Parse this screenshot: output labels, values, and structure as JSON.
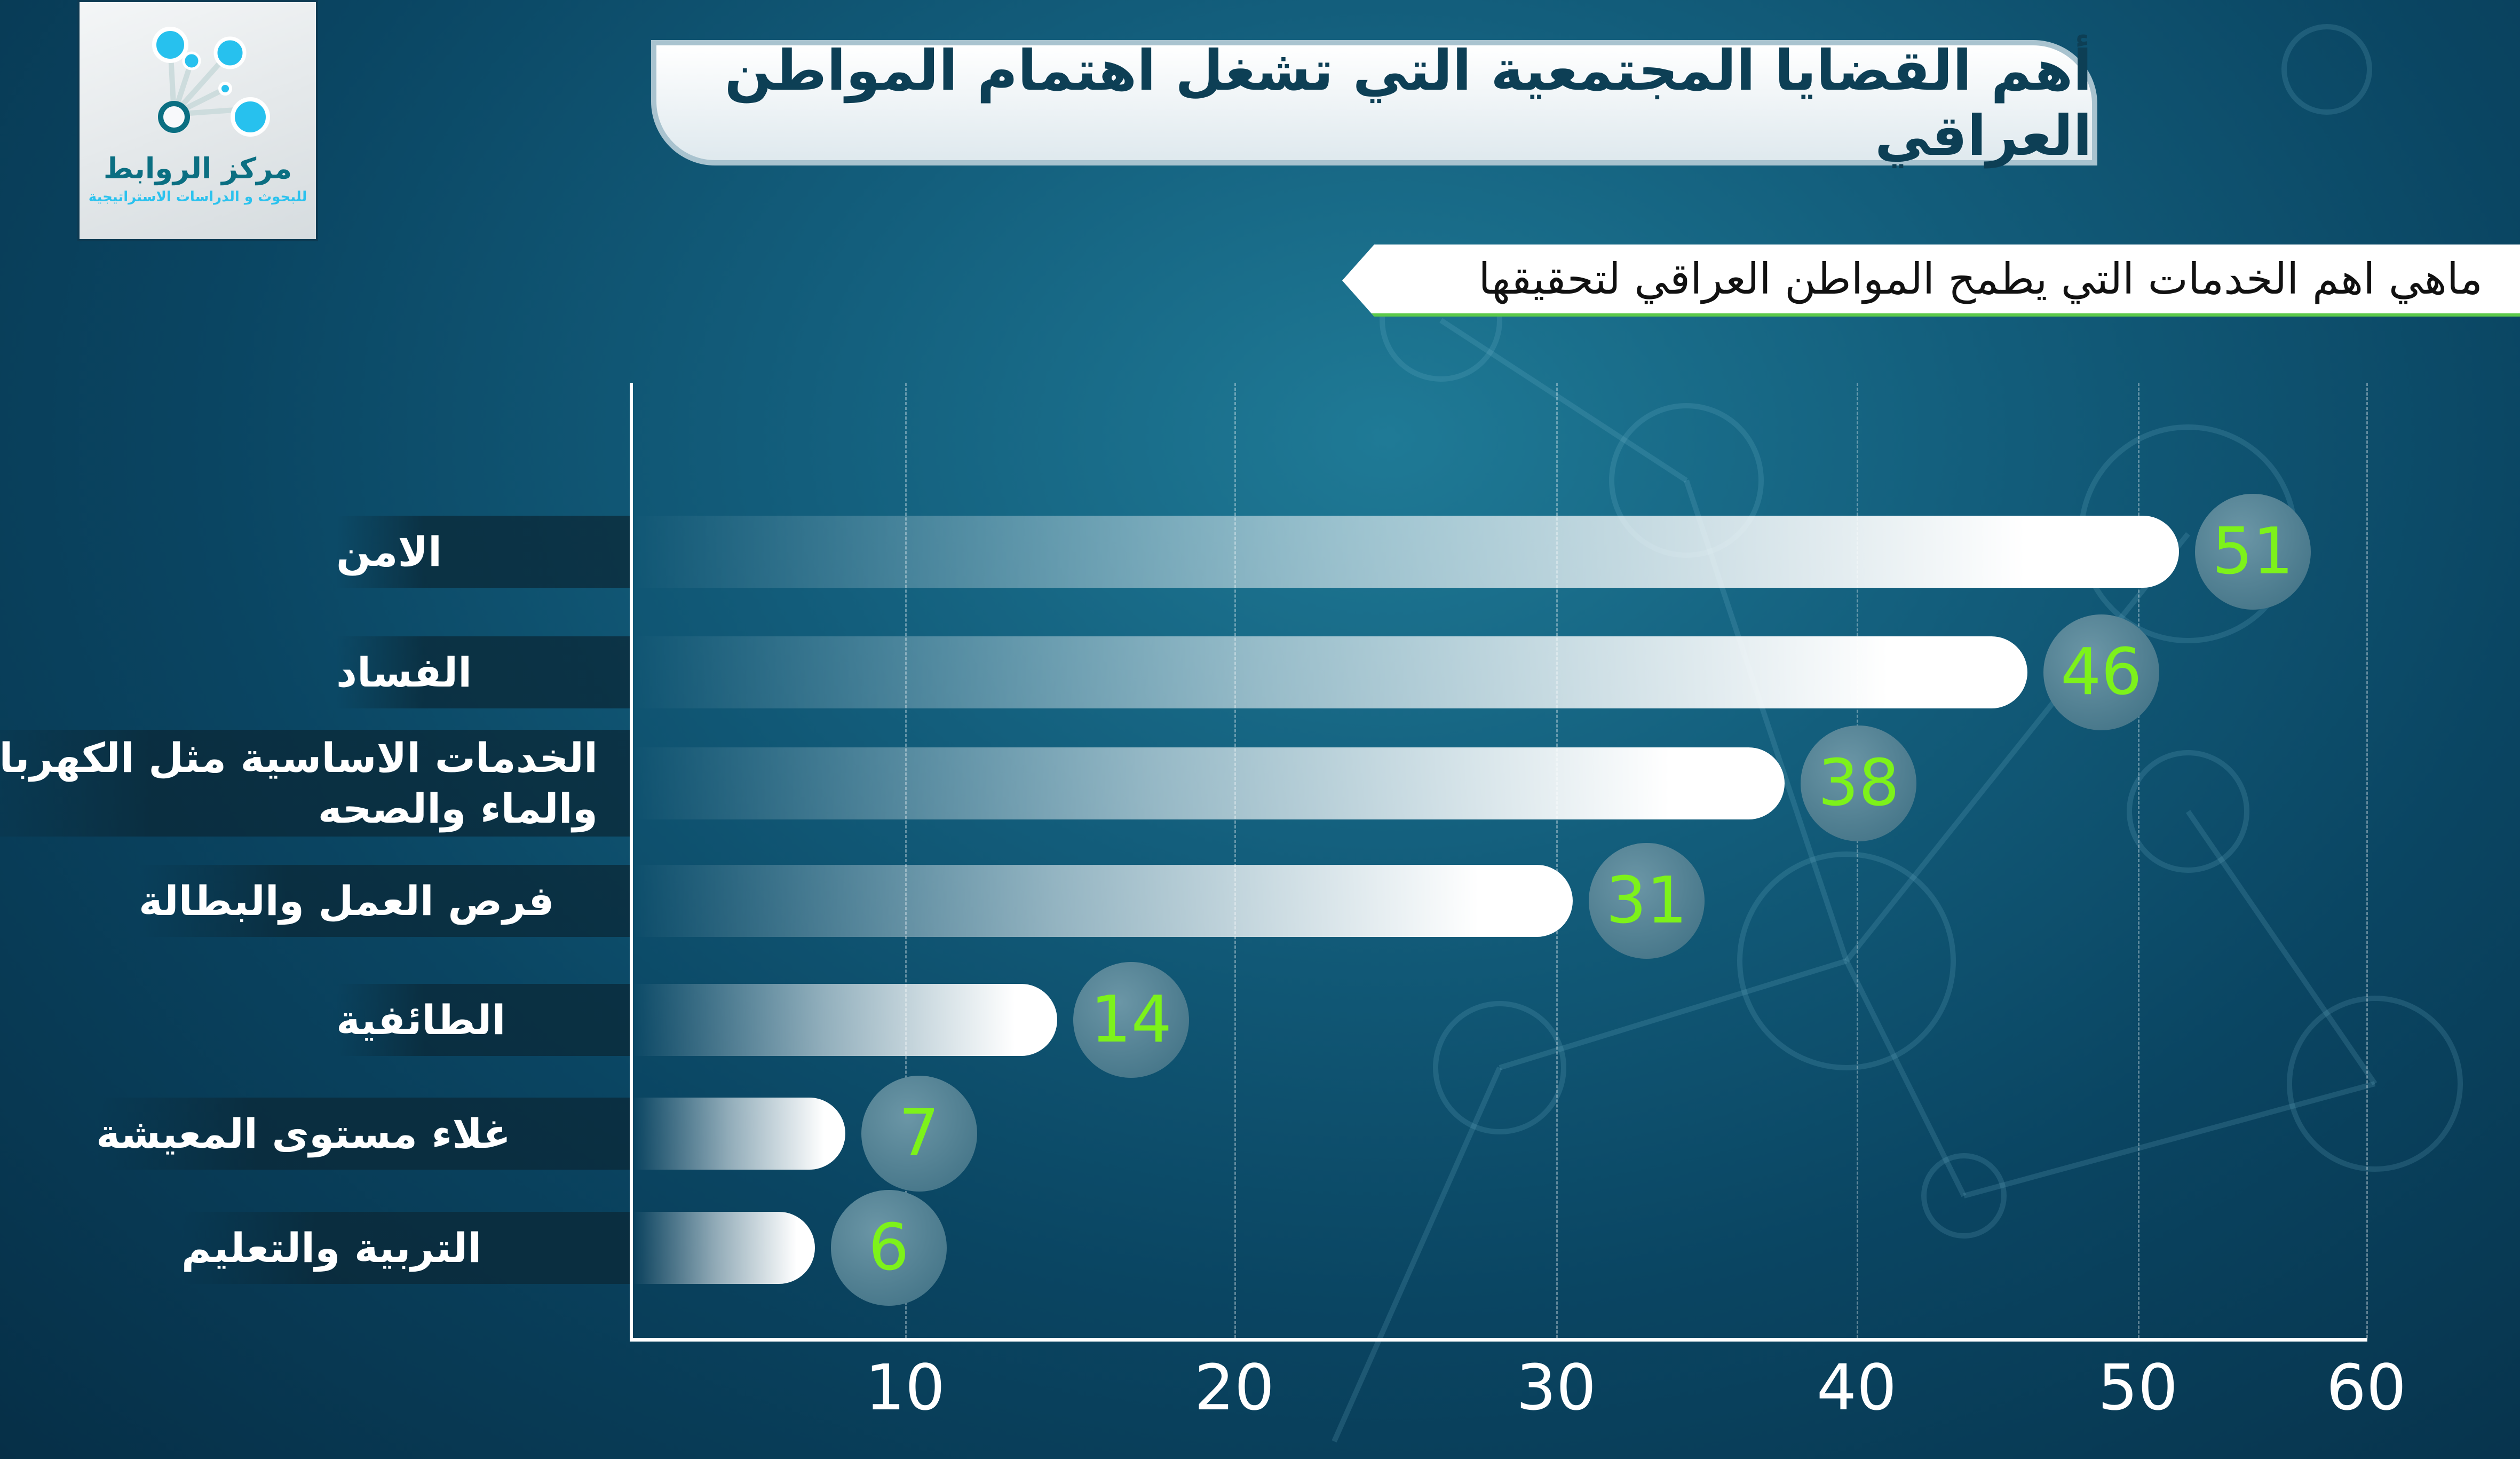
{
  "logo": {
    "name": "مركز الروابط",
    "tagline": "للبحوث و الدراسات الاستراتيجية"
  },
  "header": {
    "title": "أهم القضايا المجتمعية التي تشغل اهتمام المواطن العراقي",
    "subtitle": "ماهي اهم الخدمات التي يطمح المواطن العراقي لتحقيقها"
  },
  "colors": {
    "value_text": "#7df21a",
    "background": "#0a4562"
  },
  "chart_data": {
    "type": "bar",
    "orientation": "horizontal",
    "title": "ماهي اهم الخدمات التي يطمح المواطن العراقي لتحقيقها",
    "categories": [
      "الامن",
      "الفساد",
      "الخدمات الاساسية مثل الكهرباء والماء والصحه",
      "فرص العمل والبطالة",
      "الطائفية",
      "غلاء مستوى المعيشة",
      "التربية والتعليم"
    ],
    "values": [
      51,
      46,
      38,
      31,
      14,
      7,
      6
    ],
    "x_ticks": [
      "10",
      "20",
      "30",
      "40",
      "50",
      "60"
    ],
    "xlim": [
      0,
      60
    ],
    "grid": true
  }
}
